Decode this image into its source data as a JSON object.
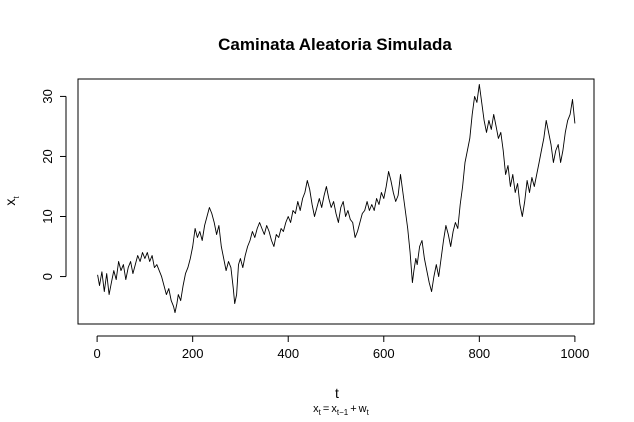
{
  "chart_data": {
    "type": "line",
    "title": "Caminata Aleatoria Simulada",
    "xlabel": "t",
    "ylabel": {
      "base": "x",
      "sub": "t"
    },
    "subtitle": {
      "x": "x",
      "t": "t",
      "eq": "=",
      "x2": "x",
      "tm1": "t−1",
      "plus": "+",
      "w": "w",
      "t2": "t"
    },
    "xlim": [
      -40,
      1040
    ],
    "ylim": [
      -7.9,
      32.9
    ],
    "x_ticks": [
      0,
      200,
      400,
      600,
      800,
      1000
    ],
    "x_tick_labels": [
      "0",
      "200",
      "400",
      "600",
      "800",
      "1000"
    ],
    "y_ticks": [
      0,
      10,
      20,
      30
    ],
    "y_tick_labels": [
      "0",
      "10",
      "20",
      "30"
    ],
    "grid": false,
    "legend": "none",
    "line_color": "#000000",
    "series": [
      {
        "points": [
          [
            1,
            0.3
          ],
          [
            5,
            -1.5
          ],
          [
            10,
            0.8
          ],
          [
            15,
            -2.5
          ],
          [
            20,
            0.5
          ],
          [
            25,
            -3.0
          ],
          [
            30,
            -1.0
          ],
          [
            35,
            1.0
          ],
          [
            40,
            -0.5
          ],
          [
            45,
            2.5
          ],
          [
            50,
            1.0
          ],
          [
            55,
            2.0
          ],
          [
            60,
            -0.5
          ],
          [
            65,
            1.5
          ],
          [
            70,
            2.5
          ],
          [
            75,
            0.5
          ],
          [
            80,
            2.0
          ],
          [
            85,
            3.5
          ],
          [
            90,
            2.5
          ],
          [
            95,
            4.0
          ],
          [
            100,
            3.0
          ],
          [
            105,
            4.0
          ],
          [
            110,
            2.5
          ],
          [
            115,
            3.5
          ],
          [
            120,
            1.5
          ],
          [
            125,
            2.0
          ],
          [
            130,
            1.0
          ],
          [
            135,
            0.0
          ],
          [
            140,
            -1.5
          ],
          [
            145,
            -3.0
          ],
          [
            150,
            -2.0
          ],
          [
            155,
            -4.0
          ],
          [
            160,
            -5.0
          ],
          [
            163,
            -6.0
          ],
          [
            167,
            -4.5
          ],
          [
            170,
            -3.0
          ],
          [
            175,
            -4.0
          ],
          [
            180,
            -1.5
          ],
          [
            185,
            0.5
          ],
          [
            190,
            1.5
          ],
          [
            195,
            3.0
          ],
          [
            200,
            5.0
          ],
          [
            205,
            8.0
          ],
          [
            210,
            6.5
          ],
          [
            215,
            7.5
          ],
          [
            220,
            6.0
          ],
          [
            225,
            8.5
          ],
          [
            230,
            10.0
          ],
          [
            235,
            11.5
          ],
          [
            240,
            10.5
          ],
          [
            245,
            9.0
          ],
          [
            250,
            7.0
          ],
          [
            255,
            8.5
          ],
          [
            260,
            5.0
          ],
          [
            265,
            3.0
          ],
          [
            270,
            1.0
          ],
          [
            275,
            2.5
          ],
          [
            280,
            1.5
          ],
          [
            285,
            -2.0
          ],
          [
            288,
            -4.5
          ],
          [
            292,
            -3.0
          ],
          [
            296,
            2.0
          ],
          [
            300,
            3.0
          ],
          [
            305,
            1.5
          ],
          [
            310,
            3.5
          ],
          [
            315,
            5.0
          ],
          [
            320,
            6.0
          ],
          [
            325,
            7.5
          ],
          [
            330,
            6.5
          ],
          [
            335,
            8.0
          ],
          [
            340,
            9.0
          ],
          [
            345,
            8.0
          ],
          [
            350,
            7.0
          ],
          [
            355,
            8.5
          ],
          [
            360,
            7.5
          ],
          [
            365,
            6.0
          ],
          [
            370,
            5.0
          ],
          [
            375,
            7.0
          ],
          [
            380,
            6.5
          ],
          [
            385,
            8.0
          ],
          [
            390,
            7.5
          ],
          [
            395,
            9.0
          ],
          [
            400,
            10.0
          ],
          [
            405,
            9.0
          ],
          [
            410,
            11.0
          ],
          [
            415,
            10.5
          ],
          [
            420,
            12.5
          ],
          [
            425,
            11.0
          ],
          [
            430,
            13.0
          ],
          [
            435,
            14.0
          ],
          [
            440,
            16.0
          ],
          [
            445,
            14.5
          ],
          [
            450,
            12.0
          ],
          [
            455,
            10.0
          ],
          [
            460,
            11.5
          ],
          [
            465,
            13.0
          ],
          [
            470,
            11.5
          ],
          [
            475,
            13.5
          ],
          [
            480,
            15.0
          ],
          [
            485,
            13.0
          ],
          [
            490,
            11.5
          ],
          [
            495,
            12.5
          ],
          [
            500,
            10.5
          ],
          [
            505,
            9.0
          ],
          [
            510,
            11.5
          ],
          [
            515,
            12.5
          ],
          [
            520,
            10.0
          ],
          [
            525,
            11.0
          ],
          [
            530,
            9.5
          ],
          [
            535,
            9.0
          ],
          [
            540,
            6.5
          ],
          [
            545,
            7.5
          ],
          [
            550,
            9.0
          ],
          [
            555,
            10.5
          ],
          [
            560,
            11.0
          ],
          [
            565,
            12.5
          ],
          [
            570,
            11.0
          ],
          [
            575,
            12.0
          ],
          [
            580,
            11.0
          ],
          [
            585,
            13.0
          ],
          [
            590,
            12.0
          ],
          [
            595,
            14.0
          ],
          [
            600,
            13.0
          ],
          [
            605,
            15.0
          ],
          [
            610,
            17.5
          ],
          [
            615,
            16.0
          ],
          [
            620,
            14.0
          ],
          [
            625,
            12.5
          ],
          [
            630,
            13.5
          ],
          [
            635,
            17.0
          ],
          [
            640,
            14.0
          ],
          [
            645,
            11.0
          ],
          [
            650,
            8.0
          ],
          [
            655,
            4.0
          ],
          [
            660,
            -1.0
          ],
          [
            663,
            1.0
          ],
          [
            667,
            3.0
          ],
          [
            670,
            2.0
          ],
          [
            675,
            5.0
          ],
          [
            680,
            6.0
          ],
          [
            685,
            3.0
          ],
          [
            690,
            1.0
          ],
          [
            695,
            -1.0
          ],
          [
            700,
            -2.5
          ],
          [
            705,
            0.0
          ],
          [
            710,
            2.0
          ],
          [
            715,
            0.0
          ],
          [
            720,
            3.0
          ],
          [
            725,
            6.0
          ],
          [
            730,
            8.5
          ],
          [
            735,
            7.0
          ],
          [
            740,
            5.0
          ],
          [
            745,
            7.5
          ],
          [
            750,
            9.0
          ],
          [
            755,
            8.0
          ],
          [
            760,
            12.0
          ],
          [
            765,
            15.0
          ],
          [
            770,
            19.0
          ],
          [
            775,
            21.0
          ],
          [
            780,
            23.0
          ],
          [
            785,
            27.0
          ],
          [
            790,
            30.0
          ],
          [
            795,
            29.0
          ],
          [
            800,
            32.0
          ],
          [
            805,
            29.0
          ],
          [
            810,
            26.0
          ],
          [
            815,
            24.0
          ],
          [
            820,
            26.0
          ],
          [
            825,
            24.5
          ],
          [
            830,
            27.0
          ],
          [
            835,
            25.0
          ],
          [
            840,
            23.0
          ],
          [
            845,
            24.0
          ],
          [
            850,
            21.0
          ],
          [
            855,
            17.0
          ],
          [
            860,
            18.5
          ],
          [
            865,
            15.0
          ],
          [
            870,
            17.0
          ],
          [
            875,
            14.0
          ],
          [
            880,
            15.5
          ],
          [
            885,
            12.0
          ],
          [
            890,
            10.0
          ],
          [
            895,
            12.5
          ],
          [
            900,
            16.0
          ],
          [
            905,
            14.0
          ],
          [
            910,
            16.5
          ],
          [
            915,
            15.0
          ],
          [
            920,
            17.0
          ],
          [
            925,
            19.0
          ],
          [
            930,
            21.0
          ],
          [
            935,
            23.0
          ],
          [
            940,
            26.0
          ],
          [
            945,
            24.0
          ],
          [
            950,
            22.0
          ],
          [
            955,
            19.0
          ],
          [
            960,
            21.0
          ],
          [
            965,
            22.0
          ],
          [
            970,
            19.0
          ],
          [
            975,
            21.0
          ],
          [
            980,
            24.0
          ],
          [
            985,
            26.0
          ],
          [
            990,
            27.0
          ],
          [
            995,
            29.5
          ],
          [
            1000,
            25.5
          ]
        ]
      }
    ]
  }
}
